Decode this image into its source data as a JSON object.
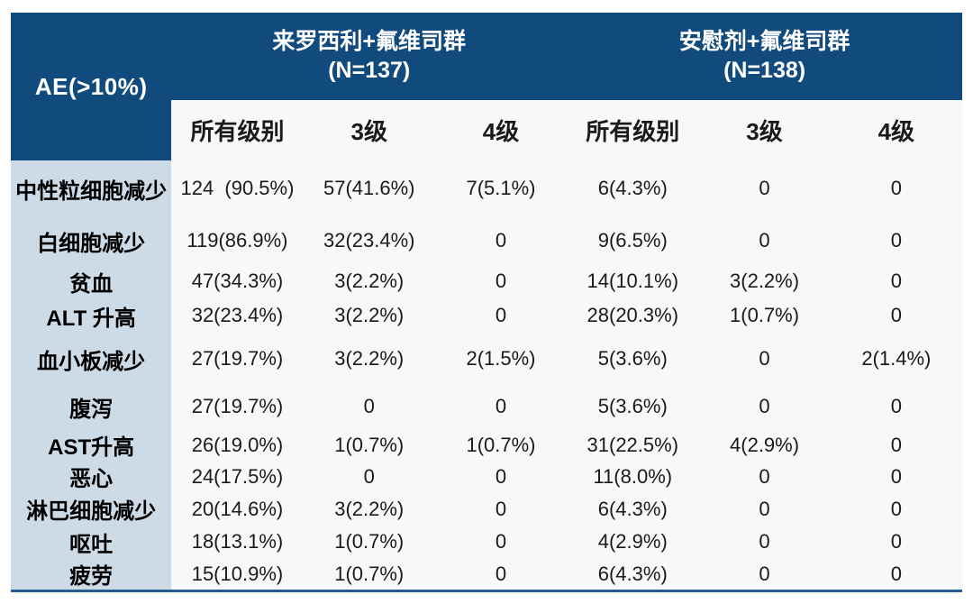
{
  "colors": {
    "header_bg": "#114A7C",
    "header_text": "#FFFFFF",
    "label_bg": "#CDDBE7",
    "body_bg": "#F7F8F9",
    "bottom_line": "#265E94"
  },
  "table": {
    "corner_header": "AE(>10%)",
    "groups": [
      {
        "title": "来罗西利+氟维司群",
        "n": "(N=137)"
      },
      {
        "title": "安慰剂+氟维司群",
        "n": "(N=138)"
      }
    ],
    "subheaders": [
      "所有级别",
      "3级",
      "4级",
      "所有级别",
      "3级",
      "4级"
    ],
    "rows": [
      {
        "label": "中性粒细胞减少",
        "values": [
          "124  (90.5%)",
          "57(41.6%)",
          "7(5.1%)",
          "6(4.3%)",
          "0",
          "0"
        ]
      },
      {
        "label": "白细胞减少",
        "values": [
          "119(86.9%)",
          "32(23.4%)",
          "0",
          "9(6.5%)",
          "0",
          "0"
        ]
      },
      {
        "label": "贫血",
        "values": [
          "47(34.3%)",
          "3(2.2%)",
          "0",
          "14(10.1%)",
          "3(2.2%)",
          "0"
        ]
      },
      {
        "label": "ALT 升高",
        "values": [
          "32(23.4%)",
          "3(2.2%)",
          "0",
          "28(20.3%)",
          "1(0.7%)",
          "0"
        ]
      },
      {
        "label": "血小板减少",
        "values": [
          "27(19.7%)",
          "3(2.2%)",
          "2(1.5%)",
          "5(3.6%)",
          "0",
          "2(1.4%)"
        ]
      },
      {
        "label": "腹泻",
        "values": [
          "27(19.7%)",
          "0",
          "0",
          "5(3.6%)",
          "0",
          "0"
        ]
      },
      {
        "label": "AST升高",
        "values": [
          "26(19.0%)",
          "1(0.7%)",
          "1(0.7%)",
          "31(22.5%)",
          "4(2.9%)",
          "0"
        ]
      },
      {
        "label": "恶心",
        "values": [
          "24(17.5%)",
          "0",
          "0",
          "11(8.0%)",
          "0",
          "0"
        ]
      },
      {
        "label": "淋巴细胞减少",
        "values": [
          "20(14.6%)",
          "3(2.2%)",
          "0",
          "6(4.3%)",
          "0",
          "0"
        ]
      },
      {
        "label": "呕吐",
        "values": [
          "18(13.1%)",
          "1(0.7%)",
          "0",
          "4(2.9%)",
          "0",
          "0"
        ]
      },
      {
        "label": "疲劳",
        "values": [
          "15(10.9%)",
          "1(0.7%)",
          "0",
          "6(4.3%)",
          "0",
          "0"
        ]
      }
    ]
  }
}
